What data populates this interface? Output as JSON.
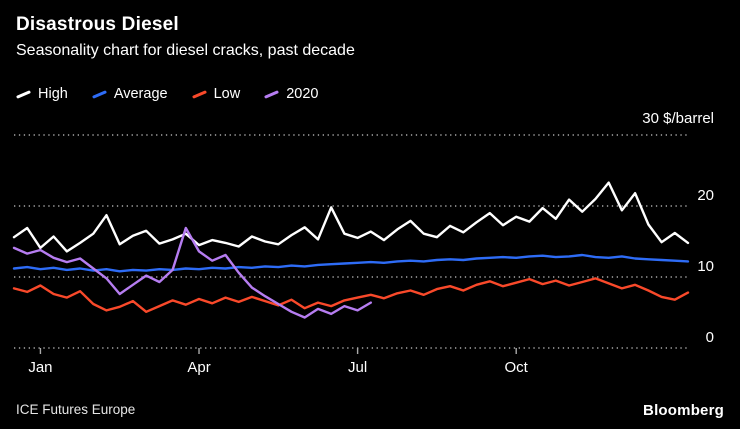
{
  "footer": {
    "source": "ICE Futures Europe",
    "brand": "Bloomberg"
  },
  "chart_data": {
    "type": "line",
    "title": "Disastrous Diesel",
    "subtitle": "Seasonality chart for diesel cracks, past decade",
    "legend_position": "top-left",
    "grid": "dotted-horizontal",
    "y_axis": {
      "min": 0,
      "max": 30,
      "unit_label": "30 $/barrel",
      "gridlines": [
        30,
        20,
        10,
        0
      ],
      "ticks": [
        {
          "value": 20,
          "label": "20"
        },
        {
          "value": 10,
          "label": "10"
        },
        {
          "value": 0,
          "label": "0"
        }
      ]
    },
    "x_axis": {
      "unit": "weeks of year",
      "range_weeks": [
        0,
        51
      ],
      "tick_weeks": [
        2,
        14,
        26,
        38
      ],
      "tick_labels": [
        "Jan",
        "Apr",
        "Jul",
        "Oct"
      ]
    },
    "series": [
      {
        "name": "High",
        "color": "#ffffff",
        "x_start": 0,
        "values": [
          15.6,
          16.9,
          14.1,
          15.7,
          13.6,
          14.8,
          16.1,
          18.7,
          14.6,
          15.8,
          16.5,
          14.7,
          15.3,
          16.1,
          14.5,
          15.2,
          14.8,
          14.3,
          15.7,
          15.0,
          14.6,
          15.9,
          17.0,
          15.3,
          19.8,
          16.1,
          15.5,
          16.4,
          15.2,
          16.7,
          17.9,
          16.1,
          15.6,
          17.2,
          16.3,
          17.7,
          19.0,
          17.3,
          18.5,
          17.8,
          19.7,
          18.2,
          20.9,
          19.2,
          21.0,
          23.3,
          19.4,
          21.8,
          17.4,
          14.9,
          16.2,
          14.8
        ]
      },
      {
        "name": "Average",
        "color": "#2e6cf6",
        "x_start": 0,
        "values": [
          11.2,
          11.4,
          11.1,
          11.3,
          11.0,
          11.2,
          10.9,
          11.1,
          10.8,
          11.0,
          10.9,
          11.1,
          11.0,
          11.2,
          11.1,
          11.3,
          11.2,
          11.4,
          11.3,
          11.5,
          11.4,
          11.6,
          11.5,
          11.7,
          11.8,
          11.9,
          12.0,
          12.1,
          12.0,
          12.2,
          12.3,
          12.2,
          12.4,
          12.5,
          12.4,
          12.6,
          12.7,
          12.8,
          12.7,
          12.9,
          13.0,
          12.8,
          12.9,
          13.1,
          12.8,
          12.7,
          12.9,
          12.6,
          12.5,
          12.4,
          12.3,
          12.2
        ]
      },
      {
        "name": "Low",
        "color": "#f9492a",
        "x_start": 0,
        "values": [
          8.4,
          7.9,
          8.8,
          7.6,
          7.1,
          8.0,
          6.2,
          5.3,
          5.8,
          6.6,
          5.1,
          5.9,
          6.7,
          6.1,
          6.9,
          6.3,
          7.1,
          6.5,
          7.2,
          6.6,
          6.0,
          6.8,
          5.6,
          6.4,
          5.9,
          6.7,
          7.1,
          7.5,
          7.0,
          7.7,
          8.1,
          7.5,
          8.3,
          8.7,
          8.1,
          8.9,
          9.4,
          8.7,
          9.2,
          9.7,
          9.0,
          9.5,
          8.8,
          9.3,
          9.8,
          9.1,
          8.4,
          8.9,
          8.1,
          7.2,
          6.8,
          7.8
        ]
      },
      {
        "name": "2020",
        "color": "#b67df1",
        "x_start": 0,
        "values": [
          14.1,
          13.3,
          13.8,
          12.7,
          12.1,
          12.6,
          11.2,
          9.8,
          7.6,
          8.9,
          10.2,
          9.3,
          11.0,
          16.9,
          13.6,
          12.3,
          13.1,
          10.6,
          8.5,
          7.3,
          6.2,
          5.1,
          4.3,
          5.5,
          4.8,
          5.9,
          5.3,
          6.4
        ]
      }
    ]
  }
}
